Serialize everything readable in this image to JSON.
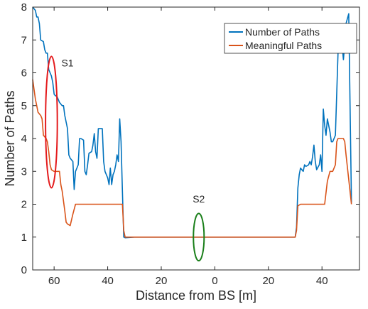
{
  "chart_data": {
    "type": "line",
    "title": "",
    "xlabel": "Distance from BS [m]",
    "ylabel": "Number of Paths",
    "xlim": [
      -68,
      54
    ],
    "ylim": [
      0,
      8
    ],
    "x_note_ticks": [
      {
        "value": -60,
        "label": "60"
      },
      {
        "value": -40,
        "label": "40"
      },
      {
        "value": -20,
        "label": "20"
      },
      {
        "value": 0,
        "label": "0"
      },
      {
        "value": 20,
        "label": "20"
      },
      {
        "value": 40,
        "label": "40"
      }
    ],
    "y_ticks": [
      {
        "value": 0,
        "label": "0"
      },
      {
        "value": 1,
        "label": "1"
      },
      {
        "value": 2,
        "label": "2"
      },
      {
        "value": 3,
        "label": "3"
      },
      {
        "value": 4,
        "label": "4"
      },
      {
        "value": 5,
        "label": "5"
      },
      {
        "value": 6,
        "label": "6"
      },
      {
        "value": 7,
        "label": "7"
      },
      {
        "value": 8,
        "label": "8"
      }
    ],
    "legend_position": "top-right",
    "grid": false,
    "series": [
      {
        "name": "Number of Paths",
        "color": "#0072BD",
        "points": [
          [
            -68,
            8.0
          ],
          [
            -67,
            7.9
          ],
          [
            -66.5,
            7.7
          ],
          [
            -66,
            7.7
          ],
          [
            -65.5,
            7.5
          ],
          [
            -65,
            7.0
          ],
          [
            -64,
            6.95
          ],
          [
            -63.5,
            6.7
          ],
          [
            -63,
            6.6
          ],
          [
            -62.5,
            6.6
          ],
          [
            -62,
            6.1
          ],
          [
            -61.5,
            6.0
          ],
          [
            -61,
            5.9
          ],
          [
            -60.5,
            5.7
          ],
          [
            -60,
            5.35
          ],
          [
            -59.5,
            5.3
          ],
          [
            -59,
            5.3
          ],
          [
            -58,
            5.1
          ],
          [
            -57,
            5.0
          ],
          [
            -56.5,
            5.0
          ],
          [
            -56,
            4.7
          ],
          [
            -55,
            4.3
          ],
          [
            -54.5,
            3.5
          ],
          [
            -54,
            3.4
          ],
          [
            -53,
            3.3
          ],
          [
            -52.5,
            2.45
          ],
          [
            -52,
            3.0
          ],
          [
            -51,
            3.2
          ],
          [
            -50.5,
            4.0
          ],
          [
            -50,
            4.0
          ],
          [
            -49,
            3.95
          ],
          [
            -48.5,
            3.0
          ],
          [
            -48,
            2.9
          ],
          [
            -47.5,
            3.2
          ],
          [
            -47,
            3.55
          ],
          [
            -46,
            3.6
          ],
          [
            -45.5,
            3.8
          ],
          [
            -45,
            4.15
          ],
          [
            -44.5,
            3.6
          ],
          [
            -44,
            3.4
          ],
          [
            -43.5,
            4.3
          ],
          [
            -43,
            4.3
          ],
          [
            -42,
            4.3
          ],
          [
            -41.5,
            3.3
          ],
          [
            -41,
            3.0
          ],
          [
            -40.5,
            2.9
          ],
          [
            -40,
            2.8
          ],
          [
            -39.5,
            2.6
          ],
          [
            -39,
            3.1
          ],
          [
            -38.5,
            2.6
          ],
          [
            -38,
            2.9
          ],
          [
            -37.5,
            3.0
          ],
          [
            -37,
            3.2
          ],
          [
            -36.5,
            3.5
          ],
          [
            -36,
            3.3
          ],
          [
            -35.5,
            4.6
          ],
          [
            -35,
            3.9
          ],
          [
            -34.5,
            2.4
          ],
          [
            -34,
            1.0
          ],
          [
            -33.5,
            0.98
          ],
          [
            -30,
            1.0
          ],
          [
            -20,
            1.0
          ],
          [
            -10,
            1.0
          ],
          [
            0,
            1.0
          ],
          [
            10,
            1.0
          ],
          [
            20,
            1.0
          ],
          [
            30,
            1.0
          ],
          [
            30.5,
            1.3
          ],
          [
            31,
            2.5
          ],
          [
            31.5,
            2.9
          ],
          [
            32,
            3.1
          ],
          [
            33,
            3.0
          ],
          [
            33.5,
            3.2
          ],
          [
            34,
            3.15
          ],
          [
            35,
            3.2
          ],
          [
            35.5,
            3.3
          ],
          [
            36,
            3.2
          ],
          [
            36.5,
            3.45
          ],
          [
            37,
            3.8
          ],
          [
            37.5,
            3.3
          ],
          [
            38,
            3.05
          ],
          [
            39,
            3.2
          ],
          [
            39.5,
            3.5
          ],
          [
            40,
            3.0
          ],
          [
            40.5,
            4.9
          ],
          [
            41,
            4.4
          ],
          [
            41.5,
            4.1
          ],
          [
            42,
            4.6
          ],
          [
            43,
            4.2
          ],
          [
            43.5,
            3.9
          ],
          [
            44,
            3.9
          ],
          [
            44.5,
            4.0
          ],
          [
            45,
            4.1
          ],
          [
            46,
            6.6
          ],
          [
            46.5,
            6.9
          ],
          [
            47,
            6.95
          ],
          [
            47.5,
            6.85
          ],
          [
            48,
            6.4
          ],
          [
            48.5,
            6.9
          ],
          [
            49,
            7.5
          ],
          [
            50,
            7.8
          ],
          [
            51,
            2.05
          ]
        ]
      },
      {
        "name": "Meaningful Paths",
        "color": "#D95319",
        "points": [
          [
            -68,
            5.8
          ],
          [
            -67,
            5.2
          ],
          [
            -66.5,
            5.0
          ],
          [
            -66,
            4.8
          ],
          [
            -65,
            4.7
          ],
          [
            -64.5,
            4.6
          ],
          [
            -64,
            4.1
          ],
          [
            -63,
            4.0
          ],
          [
            -62.5,
            3.9
          ],
          [
            -62,
            3.6
          ],
          [
            -61.5,
            3.2
          ],
          [
            -61,
            3.05
          ],
          [
            -60,
            3.0
          ],
          [
            -59,
            3.0
          ],
          [
            -58,
            3.0
          ],
          [
            -57.5,
            2.6
          ],
          [
            -57,
            2.4
          ],
          [
            -56,
            1.8
          ],
          [
            -55.5,
            1.45
          ],
          [
            -55,
            1.4
          ],
          [
            -54,
            1.35
          ],
          [
            -53,
            1.7
          ],
          [
            -52,
            2.0
          ],
          [
            -50,
            2.0
          ],
          [
            -45,
            2.0
          ],
          [
            -40,
            2.0
          ],
          [
            -35,
            2.0
          ],
          [
            -34.5,
            2.0
          ],
          [
            -34,
            1.2
          ],
          [
            -33.5,
            1.0
          ],
          [
            -30,
            1.0
          ],
          [
            -20,
            1.0
          ],
          [
            -10,
            1.0
          ],
          [
            0,
            1.0
          ],
          [
            10,
            1.0
          ],
          [
            20,
            1.0
          ],
          [
            30,
            1.0
          ],
          [
            30.5,
            1.2
          ],
          [
            31,
            1.95
          ],
          [
            32,
            2.0
          ],
          [
            35,
            2.0
          ],
          [
            40,
            2.0
          ],
          [
            41,
            2.0
          ],
          [
            42,
            2.7
          ],
          [
            43,
            3.0
          ],
          [
            44,
            3.0
          ],
          [
            45,
            3.2
          ],
          [
            45.5,
            3.9
          ],
          [
            46,
            4.0
          ],
          [
            47,
            4.0
          ],
          [
            48,
            4.0
          ],
          [
            48.5,
            3.9
          ],
          [
            49,
            3.5
          ],
          [
            51,
            2.0
          ]
        ]
      }
    ],
    "annotations": [
      {
        "label": "S1",
        "color": "#E41A1C",
        "center": [
          -61,
          4.5
        ],
        "rx": 2.2,
        "ry": 2.0,
        "label_at": [
          -55,
          6.2
        ]
      },
      {
        "label": "S2",
        "color": "#1A7F1A",
        "center": [
          -6,
          1.0
        ],
        "rx": 2.0,
        "ry": 0.72,
        "label_at": [
          -6,
          2.05
        ]
      }
    ]
  }
}
